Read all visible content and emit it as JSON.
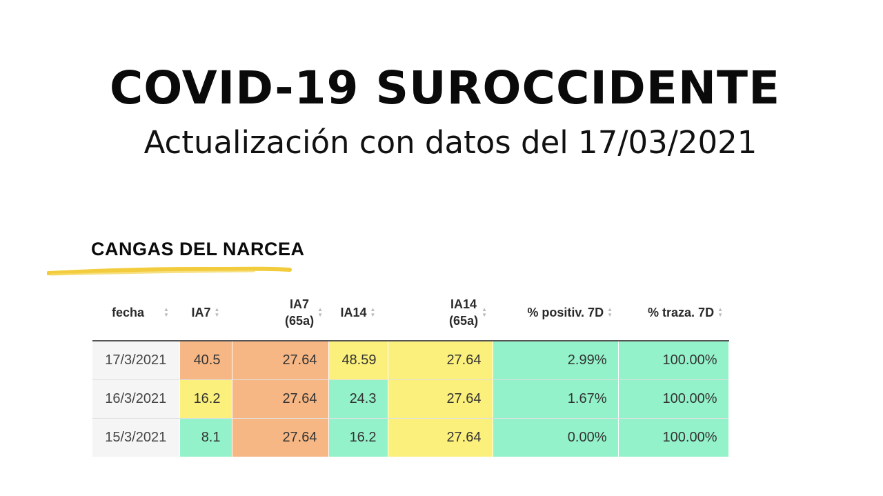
{
  "header": {
    "title": "COVID-19 SUROCCIDENTE",
    "subtitle": "Actualización con datos del 17/03/2021"
  },
  "region": "CANGAS DEL NARCEA",
  "colors": {
    "orange": "#f6b785",
    "yellow": "#fbf07c",
    "green": "#93f2c9",
    "underline": "#f2cc3d"
  },
  "table": {
    "columns": [
      {
        "line1": "fecha",
        "line2": ""
      },
      {
        "line1": "IA7",
        "line2": ""
      },
      {
        "line1": "IA7",
        "line2": "(65a)"
      },
      {
        "line1": "IA14",
        "line2": ""
      },
      {
        "line1": "IA14",
        "line2": "(65a)"
      },
      {
        "line1": "% positiv. 7D",
        "line2": ""
      },
      {
        "line1": "% traza. 7D",
        "line2": ""
      }
    ],
    "rows": [
      {
        "cells": [
          "17/3/2021",
          "40.5",
          "27.64",
          "48.59",
          "27.64",
          "2.99%",
          "100.00%"
        ],
        "colors": [
          "date",
          "orange",
          "orange",
          "yellow",
          "yellow",
          "green",
          "green"
        ]
      },
      {
        "cells": [
          "16/3/2021",
          "16.2",
          "27.64",
          "24.3",
          "27.64",
          "1.67%",
          "100.00%"
        ],
        "colors": [
          "date",
          "yellow",
          "orange",
          "green",
          "yellow",
          "green",
          "green"
        ]
      },
      {
        "cells": [
          "15/3/2021",
          "8.1",
          "27.64",
          "16.2",
          "27.64",
          "0.00%",
          "100.00%"
        ],
        "colors": [
          "date",
          "green",
          "orange",
          "green",
          "yellow",
          "green",
          "green"
        ]
      }
    ]
  }
}
